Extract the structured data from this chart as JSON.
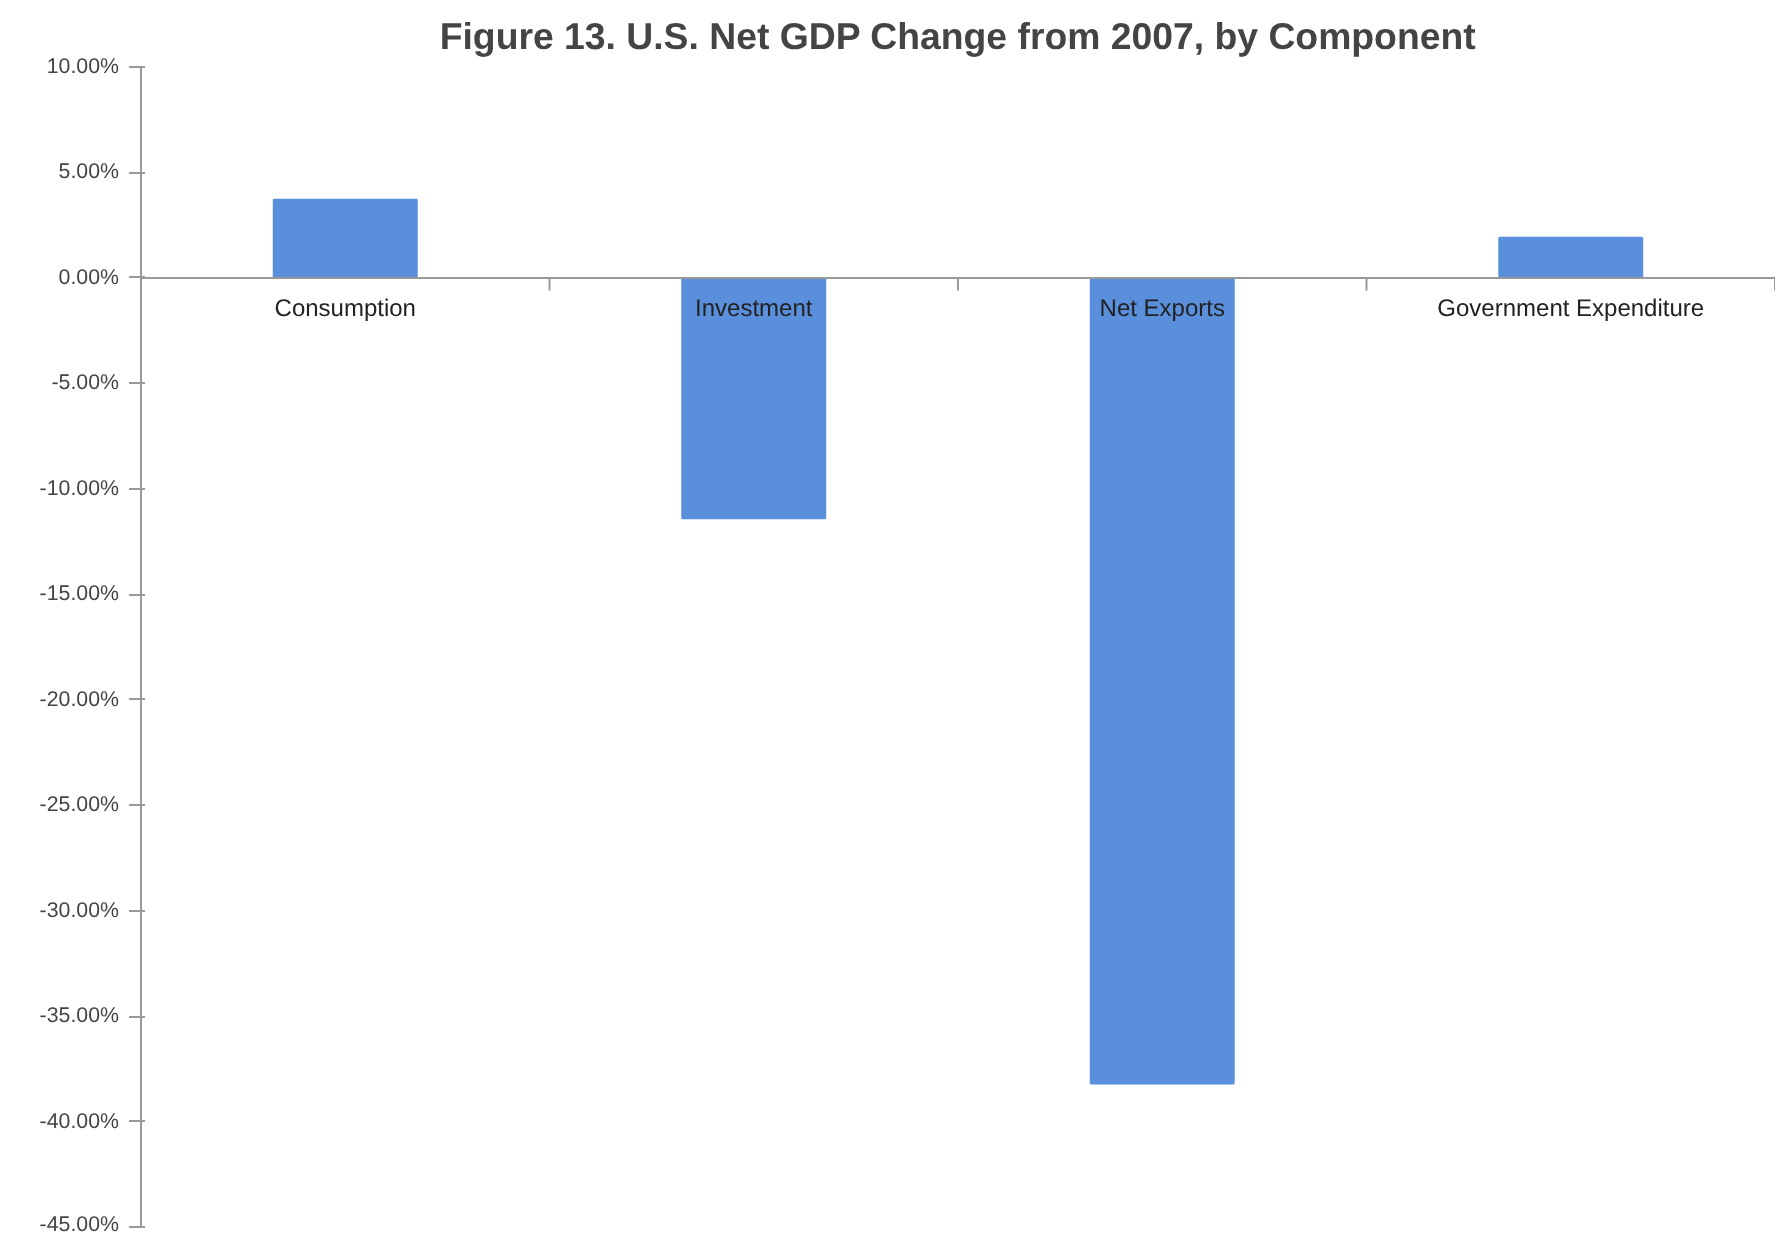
{
  "chart_data": {
    "type": "bar",
    "title": "Figure 13. U.S. Net GDP Change from 2007, by Component",
    "categories": [
      "Consumption",
      "Investment",
      "Net Exports",
      "Government Expenditure"
    ],
    "values": [
      3.7,
      -11.4,
      -38.2,
      1.9
    ],
    "color": "#5a8fdc",
    "ylim": [
      -45,
      10
    ],
    "yticks": [
      {
        "value": 10,
        "label": "10.00%"
      },
      {
        "value": 5,
        "label": "5.00%"
      },
      {
        "value": 0,
        "label": "0.00%"
      },
      {
        "value": -5,
        "label": "-5.00%"
      },
      {
        "value": -10,
        "label": "-10.00%"
      },
      {
        "value": -15,
        "label": "-15.00%"
      },
      {
        "value": -20,
        "label": "-20.00%"
      },
      {
        "value": -25,
        "label": "-25.00%"
      },
      {
        "value": -30,
        "label": "-30.00%"
      },
      {
        "value": -35,
        "label": "-35.00%"
      },
      {
        "value": -40,
        "label": "-40.00%"
      },
      {
        "value": -45,
        "label": "-45.00%"
      }
    ],
    "grid": false
  }
}
